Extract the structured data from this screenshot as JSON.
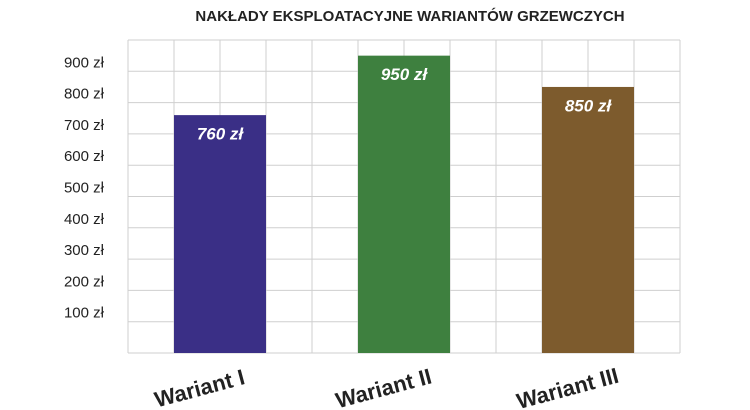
{
  "chart_data": {
    "type": "bar",
    "title": "NAKŁADY EKSPLOATACYJNE WARIANTÓW GRZEWCZYCH",
    "categories": [
      "Wariant I",
      "Wariant II",
      "Wariant III"
    ],
    "values": [
      760,
      950,
      850
    ],
    "value_labels": [
      "760 zł",
      "950 zł",
      "850 zł"
    ],
    "colors": [
      "#3a2f86",
      "#3e803f",
      "#7d5b2d"
    ],
    "ylim": [
      0,
      1000
    ],
    "yticks": [
      {
        "value": 100,
        "label": "100 zł"
      },
      {
        "value": 200,
        "label": "200 zł"
      },
      {
        "value": 300,
        "label": "300 zł"
      },
      {
        "value": 400,
        "label": "400 zł"
      },
      {
        "value": 500,
        "label": "500 zł"
      },
      {
        "value": 600,
        "label": "600 zł"
      },
      {
        "value": 700,
        "label": "700 zł"
      },
      {
        "value": 800,
        "label": "800 zł"
      },
      {
        "value": 900,
        "label": "900 zł"
      }
    ],
    "grid": true
  }
}
